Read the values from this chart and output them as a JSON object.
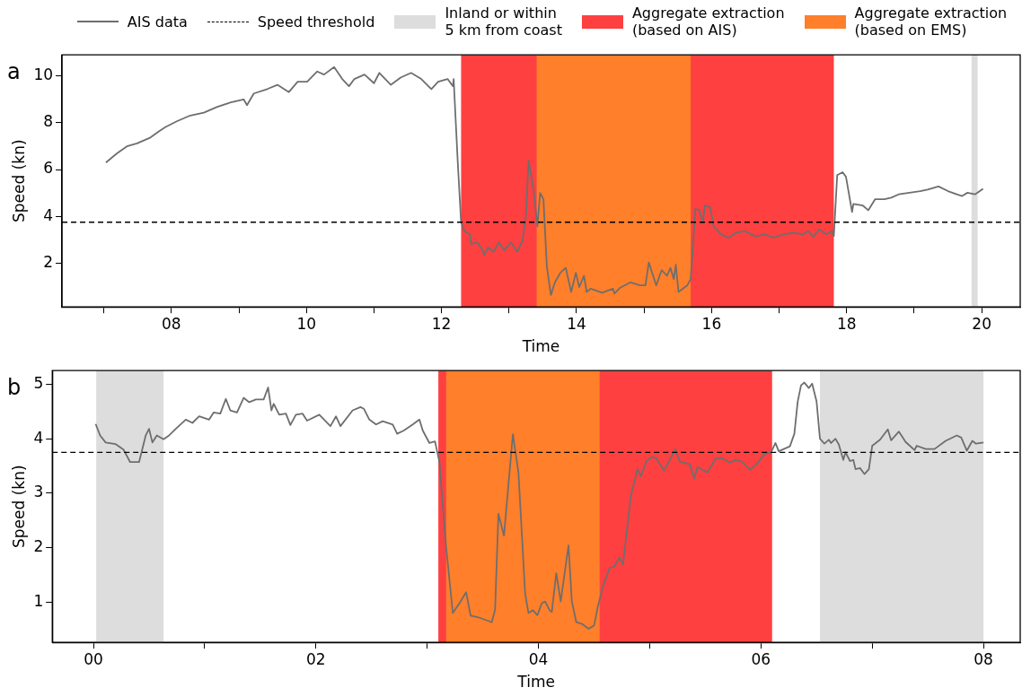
{
  "chart_data": [
    {
      "type": "line",
      "xlabel": "Time",
      "ylabel": "Speed (kn)",
      "annotations": [
        "a"
      ],
      "legend": "top",
      "xlim": [
        6.38,
        20.57
      ],
      "ylim": [
        0.13,
        10.9
      ],
      "xticks": [
        {
          "value": 7,
          "label": null
        },
        {
          "value": 8,
          "label": "08"
        },
        {
          "value": 9,
          "label": null
        },
        {
          "value": 10,
          "label": "10"
        },
        {
          "value": 11,
          "label": null
        },
        {
          "value": 12,
          "label": "12"
        },
        {
          "value": 13,
          "label": null
        },
        {
          "value": 14,
          "label": "14"
        },
        {
          "value": 15,
          "label": null
        },
        {
          "value": 16,
          "label": "16"
        },
        {
          "value": 17,
          "label": null
        },
        {
          "value": 18,
          "label": "18"
        },
        {
          "value": 19,
          "label": null
        },
        {
          "value": 20,
          "label": "20"
        }
      ],
      "yticks": [
        2,
        4,
        6,
        8,
        10
      ],
      "series": [
        {
          "name": "AIS data",
          "color": "#6e6e6e",
          "x": [
            7.03,
            7.19,
            7.34,
            7.49,
            7.69,
            7.81,
            7.91,
            8.08,
            8.28,
            8.48,
            8.68,
            8.88,
            9.07,
            9.12,
            9.22,
            9.42,
            9.57,
            9.74,
            9.87,
            10.01,
            10.16,
            10.26,
            10.41,
            10.53,
            10.63,
            10.71,
            10.86,
            11.0,
            11.08,
            11.25,
            11.4,
            11.55,
            11.7,
            11.85,
            11.95,
            12.09,
            12.17,
            12.18,
            12.24,
            12.29,
            12.34,
            12.42,
            12.44,
            12.53,
            12.61,
            12.63,
            12.69,
            12.77,
            12.85,
            12.93,
            13.03,
            13.12,
            13.2,
            13.25,
            13.29,
            13.37,
            13.42,
            13.46,
            13.51,
            13.56,
            13.62,
            13.68,
            13.76,
            13.84,
            13.92,
            13.99,
            14.04,
            14.11,
            14.15,
            14.21,
            14.38,
            14.54,
            14.56,
            14.64,
            14.8,
            14.94,
            15.02,
            15.07,
            15.18,
            15.26,
            15.34,
            15.39,
            15.44,
            15.47,
            15.51,
            15.64,
            15.69,
            15.76,
            15.82,
            15.87,
            15.9,
            15.98,
            16.03,
            16.14,
            16.25,
            16.36,
            16.49,
            16.65,
            16.79,
            16.92,
            17.06,
            17.22,
            17.35,
            17.43,
            17.51,
            17.59,
            17.7,
            17.78,
            17.81,
            17.86,
            17.94,
            17.99,
            18.08,
            18.1,
            18.24,
            18.32,
            18.42,
            18.56,
            18.66,
            18.77,
            18.93,
            19.09,
            19.2,
            19.36,
            19.5,
            19.63,
            19.71,
            19.79,
            19.9,
            20.02
          ],
          "values": [
            6.3,
            6.68,
            6.99,
            7.12,
            7.37,
            7.62,
            7.81,
            8.06,
            8.31,
            8.43,
            8.68,
            8.87,
            9.0,
            8.75,
            9.25,
            9.44,
            9.62,
            9.31,
            9.75,
            9.75,
            10.19,
            10.06,
            10.38,
            9.87,
            9.56,
            9.87,
            10.06,
            9.69,
            10.13,
            9.62,
            9.94,
            10.13,
            9.87,
            9.44,
            9.75,
            9.87,
            9.56,
            9.87,
            6.36,
            3.76,
            3.37,
            3.23,
            2.82,
            2.89,
            2.55,
            2.34,
            2.68,
            2.48,
            2.89,
            2.55,
            2.89,
            2.48,
            2.96,
            4.05,
            6.37,
            5.0,
            3.57,
            5.0,
            4.73,
            1.86,
            0.64,
            1.18,
            1.59,
            1.8,
            0.77,
            1.59,
            0.98,
            1.46,
            0.77,
            0.91,
            0.74,
            0.91,
            0.7,
            0.94,
            1.18,
            1.05,
            1.05,
            2.03,
            1.05,
            1.7,
            1.46,
            1.8,
            1.32,
            1.93,
            0.77,
            1.05,
            1.32,
            4.32,
            4.26,
            3.71,
            4.46,
            4.39,
            3.57,
            3.23,
            3.09,
            3.3,
            3.37,
            3.14,
            3.23,
            3.09,
            3.23,
            3.3,
            3.23,
            3.37,
            3.12,
            3.44,
            3.23,
            3.37,
            3.16,
            5.76,
            5.89,
            5.69,
            4.19,
            4.53,
            4.46,
            4.26,
            4.73,
            4.73,
            4.8,
            4.94,
            5.01,
            5.08,
            5.14,
            5.28,
            5.08,
            4.94,
            4.87,
            5.01,
            4.94,
            5.18
          ]
        }
      ],
      "ref_lines": [
        {
          "axis": "y",
          "value": 3.75,
          "label": "Speed threshold",
          "color": "#000000",
          "line_style": "dashed"
        }
      ],
      "bands": [
        {
          "axis": "x",
          "from": 19.85,
          "to": 19.94,
          "label": "Inland or within\n5 km from coast",
          "color": "#dddddd"
        },
        {
          "axis": "x",
          "from": 12.29,
          "to": 17.81,
          "label": "Aggregate extraction\n(based on AIS)",
          "color": "#ff4040"
        },
        {
          "axis": "x",
          "from": 13.41,
          "to": 15.69,
          "label": "Aggregate extraction\n(based on EMS)",
          "color": "#ff7f2a"
        }
      ]
    },
    {
      "type": "line",
      "xlabel": "Time",
      "ylabel": "Speed (kn)",
      "annotations": [
        "b"
      ],
      "xlim": [
        -0.37,
        8.33
      ],
      "ylim": [
        0.26,
        5.25
      ],
      "xticks": [
        {
          "value": 0,
          "label": "00"
        },
        {
          "value": 1,
          "label": null
        },
        {
          "value": 2,
          "label": "02"
        },
        {
          "value": 3,
          "label": null
        },
        {
          "value": 4,
          "label": "04"
        },
        {
          "value": 5,
          "label": null
        },
        {
          "value": 6,
          "label": "06"
        },
        {
          "value": 7,
          "label": null
        },
        {
          "value": 8,
          "label": "08"
        }
      ],
      "yticks": [
        1,
        2,
        3,
        4,
        5
      ],
      "series": [
        {
          "color": "#6e6e6e",
          "x": [
            0.02,
            0.06,
            0.11,
            0.2,
            0.27,
            0.33,
            0.41,
            0.47,
            0.5,
            0.53,
            0.57,
            0.63,
            0.68,
            0.74,
            0.83,
            0.89,
            0.95,
            1.04,
            1.08,
            1.14,
            1.19,
            1.23,
            1.29,
            1.35,
            1.4,
            1.46,
            1.53,
            1.57,
            1.6,
            1.62,
            1.67,
            1.73,
            1.77,
            1.82,
            1.88,
            1.92,
            2.03,
            2.13,
            2.18,
            2.22,
            2.33,
            2.4,
            2.43,
            2.48,
            2.54,
            2.6,
            2.69,
            2.73,
            2.79,
            2.87,
            2.93,
            2.96,
            3.02,
            3.07,
            3.11,
            3.17,
            3.23,
            3.29,
            3.35,
            3.39,
            3.46,
            3.58,
            3.61,
            3.64,
            3.69,
            3.77,
            3.82,
            3.88,
            3.91,
            3.95,
            3.99,
            4.03,
            4.06,
            4.1,
            4.12,
            4.16,
            4.2,
            4.27,
            4.3,
            4.34,
            4.39,
            4.45,
            4.5,
            4.53,
            4.58,
            4.64,
            4.68,
            4.73,
            4.76,
            4.83,
            4.89,
            4.92,
            4.97,
            5.02,
            5.06,
            5.13,
            5.23,
            5.27,
            5.36,
            5.4,
            5.43,
            5.52,
            5.59,
            5.65,
            5.72,
            5.77,
            5.83,
            5.9,
            5.96,
            6.03,
            6.09,
            6.13,
            6.16,
            6.26,
            6.3,
            6.33,
            6.36,
            6.39,
            6.43,
            6.46,
            6.5,
            6.53,
            6.57,
            6.61,
            6.63,
            6.67,
            6.7,
            6.74,
            6.76,
            6.8,
            6.83,
            6.85,
            6.89,
            6.93,
            6.97,
            7.0,
            7.07,
            7.14,
            7.17,
            7.24,
            7.3,
            7.38,
            7.4,
            7.48,
            7.56,
            7.66,
            7.76,
            7.8,
            7.85,
            7.9,
            7.93,
            8.0
          ],
          "values": [
            4.27,
            4.06,
            3.93,
            3.9,
            3.8,
            3.57,
            3.57,
            4.06,
            4.18,
            3.93,
            4.06,
            3.99,
            4.06,
            4.18,
            4.35,
            4.29,
            4.41,
            4.35,
            4.48,
            4.46,
            4.73,
            4.52,
            4.48,
            4.75,
            4.67,
            4.72,
            4.72,
            4.94,
            4.52,
            4.64,
            4.44,
            4.46,
            4.25,
            4.44,
            4.46,
            4.33,
            4.44,
            4.23,
            4.41,
            4.23,
            4.52,
            4.58,
            4.55,
            4.35,
            4.26,
            4.32,
            4.26,
            4.09,
            4.15,
            4.26,
            4.35,
            4.15,
            3.92,
            3.95,
            3.57,
            2.01,
            0.8,
            0.98,
            1.18,
            0.75,
            0.72,
            0.63,
            0.86,
            2.62,
            2.22,
            4.08,
            3.38,
            1.16,
            0.8,
            0.85,
            0.76,
            0.98,
            1.01,
            0.85,
            0.82,
            1.53,
            1.01,
            2.04,
            1.01,
            0.63,
            0.6,
            0.51,
            0.57,
            0.88,
            1.29,
            1.63,
            1.65,
            1.82,
            1.69,
            2.94,
            3.44,
            3.31,
            3.59,
            3.66,
            3.64,
            3.41,
            3.81,
            3.58,
            3.53,
            3.27,
            3.48,
            3.38,
            3.63,
            3.64,
            3.56,
            3.61,
            3.58,
            3.43,
            3.53,
            3.72,
            3.75,
            3.92,
            3.77,
            3.86,
            4.09,
            4.68,
            4.98,
            5.03,
            4.93,
            5.01,
            4.68,
            4.0,
            3.91,
            3.98,
            3.92,
            4.0,
            3.89,
            3.61,
            3.75,
            3.59,
            3.61,
            3.44,
            3.46,
            3.35,
            3.44,
            3.87,
            3.98,
            4.17,
            3.97,
            4.13,
            3.94,
            3.79,
            3.87,
            3.81,
            3.81,
            3.96,
            4.06,
            4.02,
            3.78,
            3.96,
            3.91,
            3.93
          ]
        }
      ],
      "ref_lines": [
        {
          "axis": "y",
          "value": 3.75,
          "color": "#000000",
          "line_style": "dashed"
        }
      ],
      "bands": [
        {
          "axis": "x",
          "from": 0.025,
          "to": 0.63,
          "color": "#dddddd"
        },
        {
          "axis": "x",
          "from": 6.53,
          "to": 8.0,
          "color": "#dddddd"
        },
        {
          "axis": "x",
          "from": 3.1,
          "to": 6.1,
          "color": "#ff4040"
        },
        {
          "axis": "x",
          "from": 3.17,
          "to": 4.55,
          "color": "#ff7f2a"
        }
      ]
    }
  ]
}
